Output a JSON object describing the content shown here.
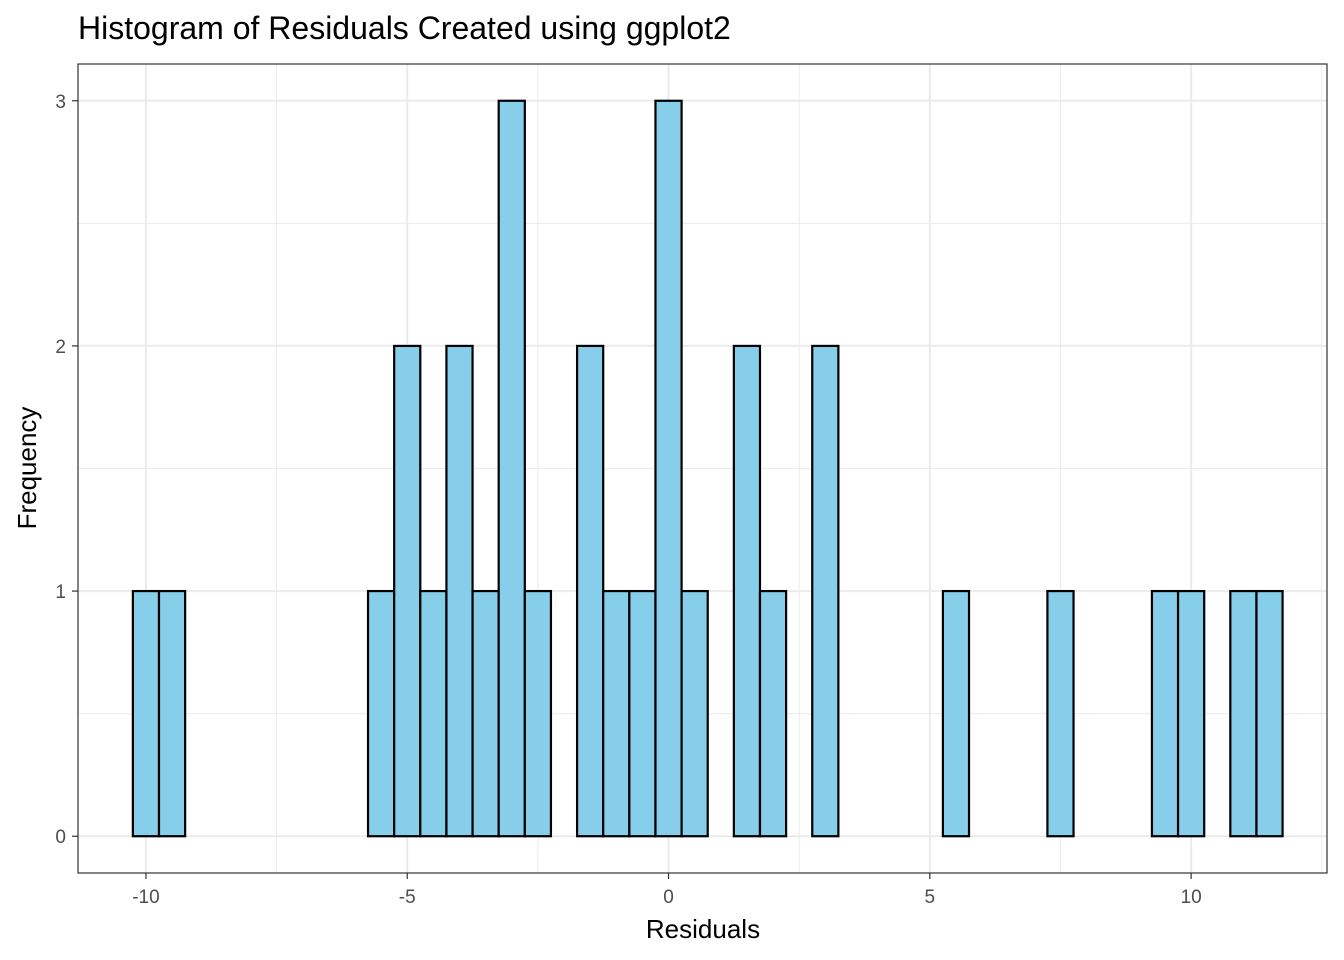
{
  "chart_data": {
    "type": "bar",
    "title": "Histogram of Residuals Created using ggplot2",
    "xlabel": "Residuals",
    "ylabel": "Frequency",
    "bin_width": 0.5,
    "xlim": [
      -11.3,
      12.6
    ],
    "ylim": [
      -0.15,
      3.15
    ],
    "x_ticks": [
      -10,
      -5,
      0,
      5,
      10
    ],
    "x_tick_labels": [
      "-10",
      "-5",
      "0",
      "5",
      "10"
    ],
    "y_ticks": [
      0,
      1,
      2,
      3
    ],
    "y_tick_labels": [
      "0",
      "1",
      "2",
      "3"
    ],
    "grid": true,
    "bar_fill": "#87CEEB",
    "bar_edge": "#000000",
    "bin_centers": [
      -10,
      -9.5,
      -9,
      -8.5,
      -8,
      -7.5,
      -7,
      -6.5,
      -6,
      -5.5,
      -5,
      -4.5,
      -4,
      -3.5,
      -3,
      -2.5,
      -2,
      -1.5,
      -1,
      -0.5,
      0,
      0.5,
      1,
      1.5,
      2,
      2.5,
      3,
      3.5,
      4,
      4.5,
      5,
      5.5,
      6,
      6.5,
      7,
      7.5,
      8,
      8.5,
      9,
      9.5,
      10,
      10.5,
      11,
      11.5
    ],
    "counts": [
      1,
      1,
      0,
      0,
      0,
      0,
      0,
      0,
      0,
      1,
      2,
      1,
      2,
      1,
      3,
      1,
      0,
      2,
      1,
      1,
      3,
      1,
      0,
      2,
      1,
      0,
      2,
      0,
      0,
      0,
      0,
      1,
      0,
      0,
      0,
      1,
      0,
      0,
      0,
      1,
      1,
      0,
      1,
      1
    ]
  }
}
